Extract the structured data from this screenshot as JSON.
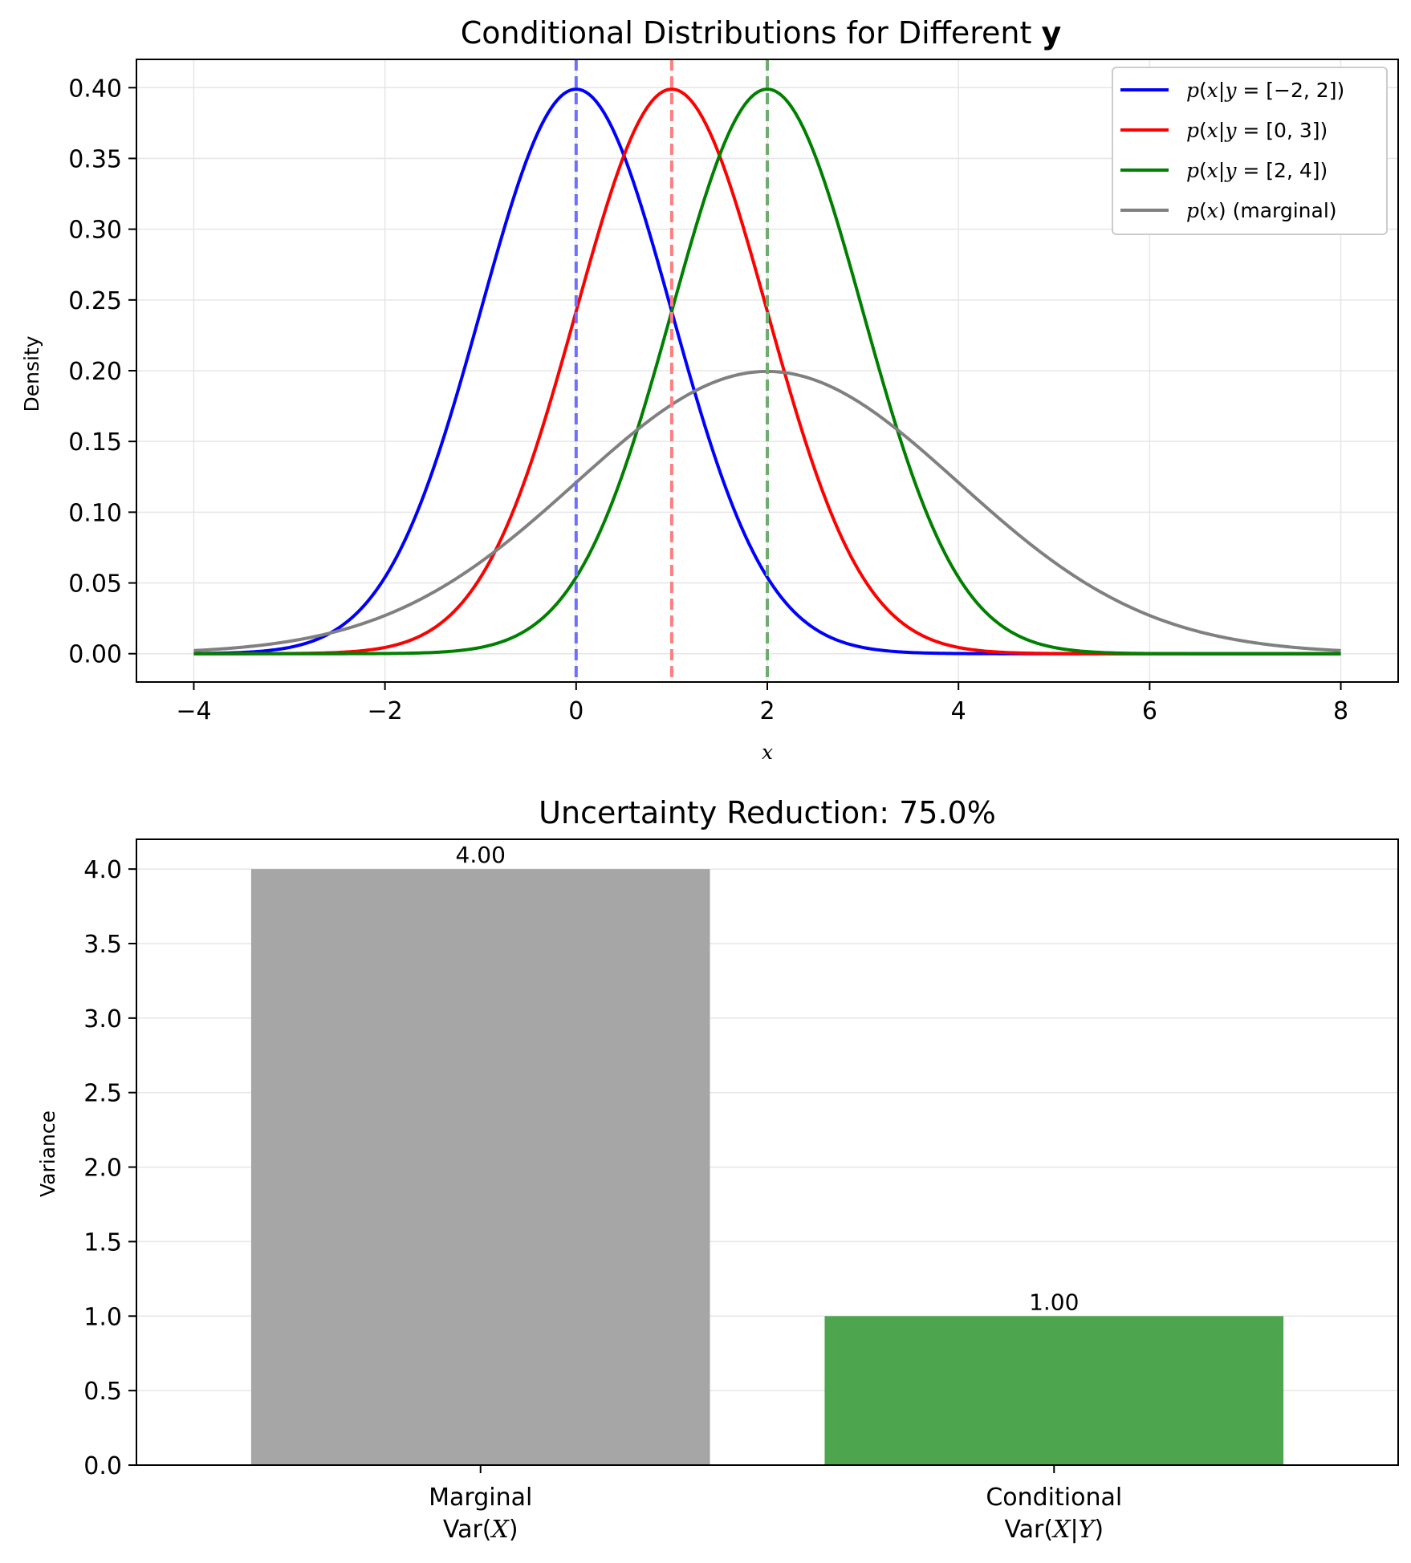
{
  "chart_data": [
    {
      "type": "line",
      "title": "Conditional Distributions for Different",
      "title_bold_suffix": "y",
      "xlabel": "x",
      "ylabel": "Density",
      "xlim": [
        -4.6,
        8.6
      ],
      "ylim": [
        -0.02,
        0.42
      ],
      "x_range": [
        -4,
        8
      ],
      "grid": true,
      "legend_position": "top-right",
      "xticks": [
        -4,
        -2,
        0,
        2,
        4,
        6,
        8
      ],
      "xtick_labels": [
        "−4",
        "−2",
        "0",
        "2",
        "4",
        "6",
        "8"
      ],
      "yticks": [
        0,
        0.05,
        0.1,
        0.15,
        0.2,
        0.25,
        0.3,
        0.35,
        0.4
      ],
      "ytick_labels": [
        "0.00",
        "0.05",
        "0.10",
        "0.15",
        "0.20",
        "0.25",
        "0.30",
        "0.35",
        "0.40"
      ],
      "series": [
        {
          "name": "p(x|y = [−2, 2])",
          "legend_parts": [
            "p",
            "(",
            "x",
            "|",
            "y",
            " = [−2, 2])"
          ],
          "mean": 0,
          "std": 1,
          "color": "#0000ff",
          "vline": 0,
          "vline_color": "#6f6fff"
        },
        {
          "name": "p(x|y = [0, 3])",
          "legend_parts": [
            "p",
            "(",
            "x",
            "|",
            "y",
            " = [0, 3])"
          ],
          "mean": 1,
          "std": 1,
          "color": "#ff0000",
          "vline": 1,
          "vline_color": "#ff7f7f"
        },
        {
          "name": "p(x|y = [2, 4])",
          "legend_parts": [
            "p",
            "(",
            "x",
            "|",
            "y",
            " = [2, 4])"
          ],
          "mean": 2,
          "std": 1,
          "color": "#008000",
          "vline": 2,
          "vline_color": "#6fad6f"
        },
        {
          "name": "p(x) (marginal)",
          "legend_parts": [
            "p",
            "(",
            "x",
            ")",
            "",
            " (marginal)"
          ],
          "mean": 2,
          "std": 2,
          "color": "#808080",
          "vline": null,
          "vline_color": null
        }
      ]
    },
    {
      "type": "bar",
      "title": "Uncertainty Reduction: 75.0%",
      "xlabel": "",
      "ylabel": "Variance",
      "ylim": [
        0,
        4.2
      ],
      "grid": true,
      "yticks": [
        0,
        0.5,
        1,
        1.5,
        2,
        2.5,
        3,
        3.5,
        4
      ],
      "ytick_labels": [
        "0.0",
        "0.5",
        "1.0",
        "1.5",
        "2.0",
        "2.5",
        "3.0",
        "3.5",
        "4.0"
      ],
      "categories": [
        {
          "line1": "Marginal",
          "line2_prefix": "Var(",
          "line2_var": "X",
          "line2_mid": "",
          "line2_var2": "",
          "line2_suffix": ")"
        },
        {
          "line1": "Conditional",
          "line2_prefix": "Var(",
          "line2_var": "X",
          "line2_mid": "|",
          "line2_var2": "Y",
          "line2_suffix": ")"
        }
      ],
      "values": [
        4.0,
        1.0
      ],
      "value_labels": [
        "4.00",
        "1.00"
      ],
      "colors": [
        "#a6a6a6",
        "#4da64d"
      ]
    }
  ]
}
